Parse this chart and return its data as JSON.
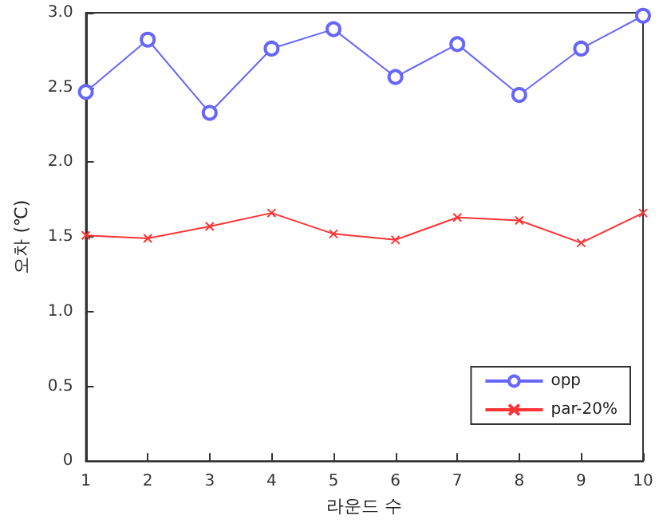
{
  "chart_data": {
    "type": "line",
    "xlabel": "라운드 수",
    "ylabel": "오차 (℃)",
    "x": [
      1,
      2,
      3,
      4,
      5,
      6,
      7,
      8,
      9,
      10
    ],
    "xlim": [
      1,
      10
    ],
    "xticks": [
      1,
      2,
      3,
      4,
      5,
      6,
      7,
      8,
      9,
      10
    ],
    "ylim": [
      0,
      3
    ],
    "yticks": [
      {
        "value": 0,
        "label": "0"
      },
      {
        "value": 0.5,
        "label": "0.5"
      },
      {
        "value": 1,
        "label": "1.0"
      },
      {
        "value": 1.5,
        "label": "1.5"
      },
      {
        "value": 2,
        "label": "2.0"
      },
      {
        "value": 2.5,
        "label": "2.5"
      },
      {
        "value": 3,
        "label": "3.0"
      }
    ],
    "grid": false,
    "legend": "bottom right",
    "line_style": "solid",
    "series": [
      {
        "name": "opp",
        "color": "#6666ff",
        "marker": "circle",
        "values": [
          2.47,
          2.82,
          2.33,
          2.76,
          2.89,
          2.57,
          2.79,
          2.45,
          2.76,
          2.98
        ]
      },
      {
        "name": "par-20%",
        "color": "#ff3333",
        "marker": "cross",
        "values": [
          1.51,
          1.49,
          1.57,
          1.66,
          1.52,
          1.48,
          1.63,
          1.61,
          1.46,
          1.66
        ]
      }
    ]
  }
}
